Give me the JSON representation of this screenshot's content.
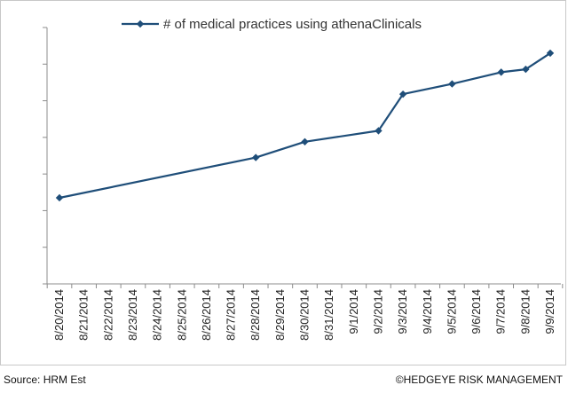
{
  "chart_data": {
    "type": "line",
    "x": [
      "8/20/2014",
      "8/21/2014",
      "8/22/2014",
      "8/23/2014",
      "8/24/2014",
      "8/25/2014",
      "8/26/2014",
      "8/27/2014",
      "8/28/2014",
      "8/29/2014",
      "8/30/2014",
      "8/31/2014",
      "9/1/2014",
      "9/2/2014",
      "9/3/2014",
      "9/4/2014",
      "9/5/2014",
      "9/6/2014",
      "9/7/2014",
      "9/8/2014",
      "9/9/2014"
    ],
    "series": [
      {
        "name": "# of medical practices using athenaClinicals",
        "color": "#1f4e79",
        "marker": "diamond",
        "points": [
          {
            "x": "8/20/2014",
            "y": 2.35
          },
          {
            "x": "8/28/2014",
            "y": 3.45
          },
          {
            "x": "8/30/2014",
            "y": 3.88
          },
          {
            "x": "9/2/2014",
            "y": 4.18
          },
          {
            "x": "9/3/2014",
            "y": 5.18
          },
          {
            "x": "9/5/2014",
            "y": 5.46
          },
          {
            "x": "9/7/2014",
            "y": 5.78
          },
          {
            "x": "9/8/2014",
            "y": 5.86
          },
          {
            "x": "9/9/2014",
            "y": 6.3
          }
        ]
      }
    ],
    "ylim": [
      0,
      7
    ],
    "y_tick_labels_shown": false,
    "grid": false,
    "legend_position": "top-center"
  },
  "footer": {
    "source": "Source: HRM Est",
    "copyright": "©HEDGEYE RISK MANAGEMENT"
  }
}
